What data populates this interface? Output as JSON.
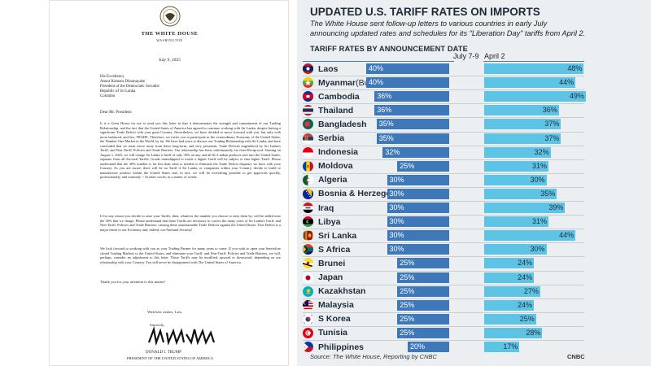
{
  "letter": {
    "house": "THE WHITE HOUSE",
    "city": "WASHINGTON",
    "date": "July 9, 2025",
    "addressee": [
      "His Excellency",
      "Anura Kumara Dissanayake",
      "President of the Democratic Socialist",
      "  Republic of Sri Lanka",
      "Colombo"
    ],
    "salutation": "Dear Mr. President:",
    "paragraphs": [
      "It is a Great Honor for me to send you this letter in that it demonstrates the strength and commitment of our Trading Relationship, and the fact that the United States of America has agreed to continue working with Sri Lanka, despite having a significant Trade Deficit with your great Country. Nevertheless, we have decided to move forward with you, but only with more balanced, and fair, TRADE. Therefore, we invite you to participate in the extraordinary Economy of the United States, the Number One Market in the World, by far. We have had years to discuss our Trading Relationship with Sri Lanka, and have concluded that we must move away from these long-term, and very persistent, Trade Deficits engendered by Sri Lanka's Tariff, and Non-Tariff, Policies and Trade Barriers. Our relationship has been, unfortunately, far from Reciprocal. Starting on August 1, 2025, we will charge Sri Lanka a Tariff of only 30% on any and all Sri Lankan products sent into the United States, separate from all Sectoral Tariffs. Goods transshipped to evade a higher Tariff will be subject to that higher Tariff. Please understand that the 30% number is far less than what is needed to eliminate the Trade Deficit disparity we have with your Country. As you are aware, there will be no Tariff if Sri Lanka, or companies within your Country, decide to build or manufacture product within the United States and, in fact, we will do everything possible to get approvals quickly, professionally, and routinely -- In other words, in a matter of weeks.",
      "If for any reason you decide to raise your Tariffs, then, whatever the number you choose to raise them by, will be added onto the 30% that we charge. Please understand that these Tariffs are necessary to correct the many years of Sri Lanka's Tariff, and Non-Tariff, Policies and Trade Barriers, causing these unsustainable Trade Deficits against the United States. This Deficit is a major threat to our Economy and, indeed, our National Security!",
      "We look forward to working with you as your Trading Partner for many years to come. If you wish to open your heretofore closed Trading Markets to the United States, and eliminate your Tariff, and Non-Tariff, Policies and Trade Barriers, we will, perhaps, consider an adjustment to this letter. These Tariffs may be modified, upward or downward, depending on our relationship with your Country. You will never be disappointed with The United States of America."
    ],
    "thanks": "Thank you for your attention to this matter!",
    "closing": "With best wishes, I am,",
    "sincerely": "Sincerely,",
    "signer_name": "DONALD J. TRUMP",
    "signer_title": "PRESIDENT OF THE UNITED STATES OF AMERICA"
  },
  "colors": {
    "july_bar": "#3f78b8",
    "april_bar": "#5ec4e6",
    "panel_bg": "#eceff1",
    "title_text": "#1e2a38"
  },
  "chart_data": {
    "type": "bar",
    "title": "UPDATED U.S. TARIFF RATES ON IMPORTS",
    "subtitle": "The White House sent follow-up letters to various countries in early July announcing updated rates and schedules for its \"Liberation Day\" tariffs from April 2.",
    "heading": "TARIFF RATES BY ANNOUNCEMENT DATE",
    "ylim": [
      0,
      50
    ],
    "grid": false,
    "series_labels": [
      "July 7-9",
      "April 2"
    ],
    "categories": [
      "Laos",
      "Myanmar",
      "Cambodia",
      "Thailand",
      "Bangladesh",
      "Serbia",
      "Indonesia",
      "Moldova",
      "Algeria",
      "Bosnia & Herzegovina",
      "Iraq",
      "Libya",
      "Sri Lanka",
      "S Africa",
      "Brunei",
      "Japan",
      "Kazakhstan",
      "Malaysia",
      "S Korea",
      "Tunisia",
      "Philippines"
    ],
    "category_qualifiers": [
      "",
      "(Burma)",
      "",
      "",
      "",
      "",
      "",
      "",
      "",
      "",
      "",
      "",
      "",
      "",
      "",
      "",
      "",
      "",
      "",
      "",
      ""
    ],
    "series": [
      {
        "name": "July 7-9",
        "values": [
          40,
          40,
          36,
          36,
          35,
          35,
          32,
          25,
          30,
          30,
          30,
          30,
          30,
          30,
          25,
          25,
          25,
          25,
          25,
          25,
          20
        ]
      },
      {
        "name": "April 2",
        "values": [
          48,
          44,
          49,
          36,
          37,
          37,
          32,
          31,
          30,
          35,
          39,
          31,
          44,
          30,
          24,
          24,
          27,
          24,
          25,
          28,
          17
        ]
      }
    ],
    "flags": [
      "laos-flag-icon",
      "myanmar-flag-icon",
      "cambodia-flag-icon",
      "thailand-flag-icon",
      "bangladesh-flag-icon",
      "serbia-flag-icon",
      "indonesia-flag-icon",
      "moldova-flag-icon",
      "algeria-flag-icon",
      "bosnia-flag-icon",
      "iraq-flag-icon",
      "libya-flag-icon",
      "sri-lanka-flag-icon",
      "south-africa-flag-icon",
      "brunei-flag-icon",
      "japan-flag-icon",
      "kazakhstan-flag-icon",
      "malaysia-flag-icon",
      "south-korea-flag-icon",
      "tunisia-flag-icon",
      "philippines-flag-icon"
    ],
    "source": "Source: The White House, Reporting by CNBC",
    "logo": "CNBC"
  }
}
